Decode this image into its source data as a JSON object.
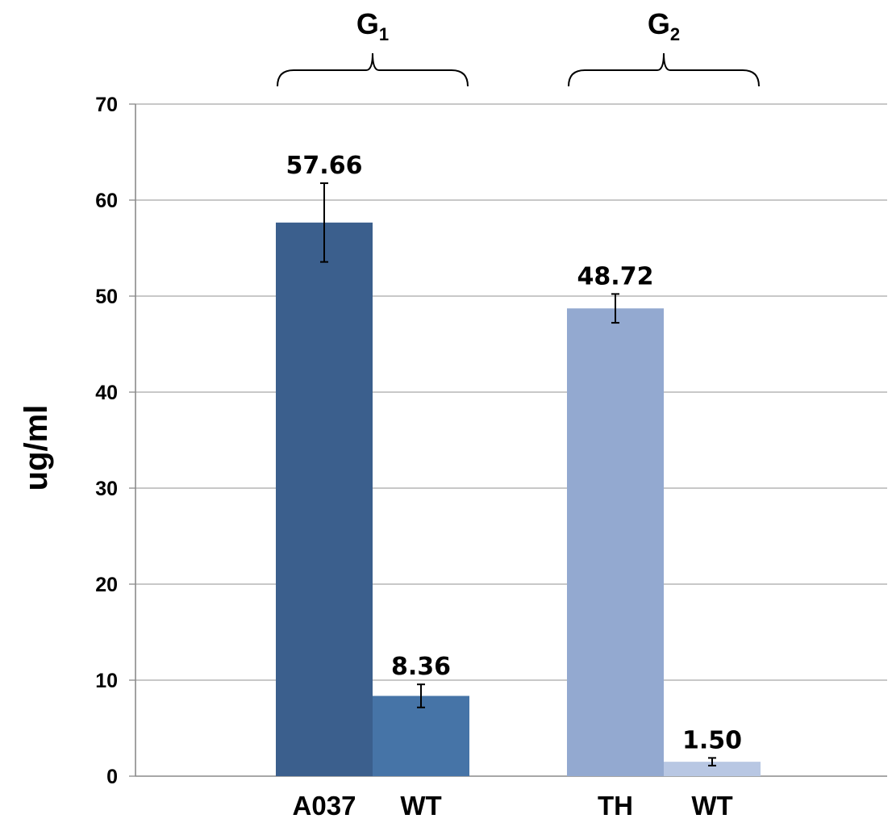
{
  "chart_data": {
    "type": "bar",
    "ylabel": "ug/ml",
    "ylim": [
      0,
      70
    ],
    "yticks": [
      0,
      10,
      20,
      30,
      40,
      50,
      60,
      70
    ],
    "grid": true,
    "groups": [
      {
        "label_main": "G",
        "label_sub": "1",
        "bars": [
          {
            "category": "A037",
            "value": 57.66,
            "value_label": "57.66",
            "error": 4.1,
            "color": "#3b5f8d"
          },
          {
            "category": "WT",
            "value": 8.36,
            "value_label": "8.36",
            "error": 1.2,
            "color": "#4674a7"
          }
        ]
      },
      {
        "label_main": "G",
        "label_sub": "2",
        "bars": [
          {
            "category": "TH",
            "value": 48.72,
            "value_label": "48.72",
            "error": 1.5,
            "color": "#93a9d0"
          },
          {
            "category": "WT",
            "value": 1.5,
            "value_label": "1.50",
            "error": 0.4,
            "color": "#b8c7e3"
          }
        ]
      }
    ]
  }
}
